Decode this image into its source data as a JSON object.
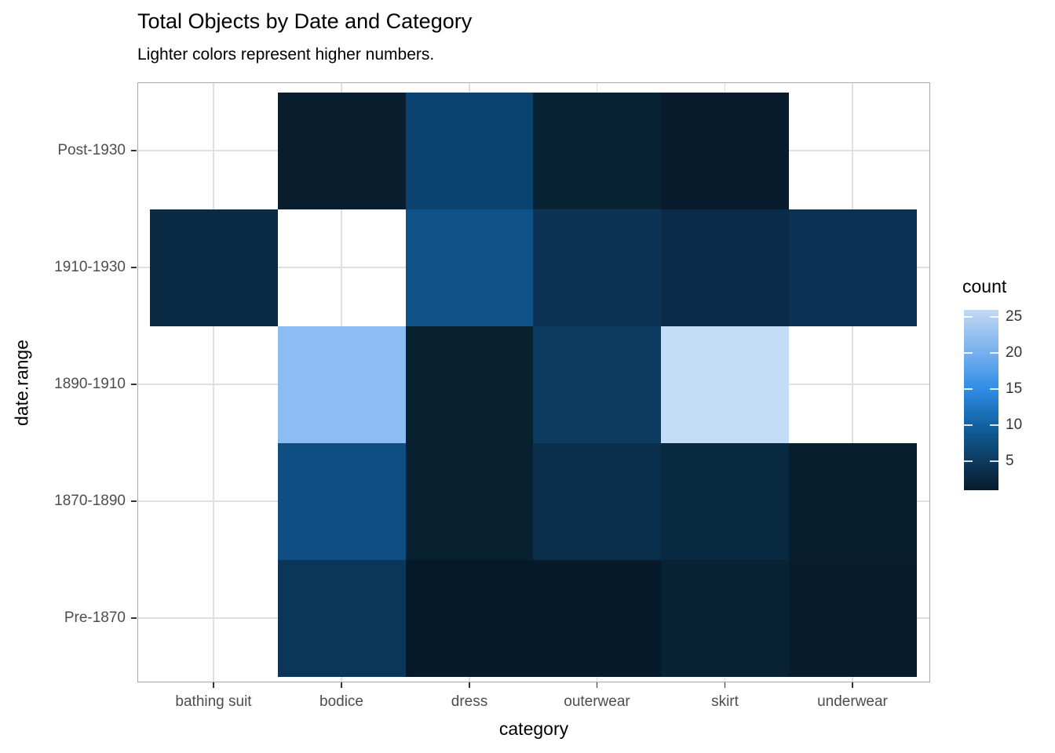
{
  "title": "Total Objects by Date and Category",
  "subtitle": "Lighter colors represent higher numbers.",
  "chart_data": {
    "type": "heatmap",
    "title": "Total Objects by Date and Category",
    "subtitle": "Lighter colors represent higher numbers.",
    "xlabel": "category",
    "ylabel": "date.range",
    "x_categories": [
      "bathing suit",
      "bodice",
      "dress",
      "outerwear",
      "skirt",
      "underwear"
    ],
    "y_categories": [
      "Post-1930",
      "1910-1930",
      "1890-1910",
      "1870-1890",
      "Pre-1870"
    ],
    "values": [
      [
        null,
        2,
        6,
        3,
        2,
        null
      ],
      [
        3,
        null,
        8,
        4,
        3,
        4
      ],
      [
        null,
        21,
        2,
        5,
        26,
        null
      ],
      [
        null,
        7,
        2,
        4,
        3,
        2
      ],
      [
        null,
        5,
        1,
        2,
        3,
        2
      ]
    ],
    "cell_colors": [
      [
        null,
        "#081d2e",
        "#0c4270",
        "#082334",
        "#081c2d",
        null
      ],
      [
        "#0a2a43",
        null,
        "#0e5288",
        "#0c3354",
        "#0a2c49",
        "#0b3154"
      ],
      [
        null,
        "#8dbcf2",
        "#07212f",
        "#0b3b60",
        "#c3ddf6",
        null
      ],
      [
        null,
        "#0f4e82",
        "#082130",
        "#0a2f4d",
        "#092940",
        "#071e2f"
      ],
      [
        null,
        "#0b3659",
        "#051928",
        "#071a2b",
        "#092336",
        "#081c2d"
      ]
    ],
    "missing_color": "#ffffff",
    "grid": true,
    "gridline_color": "#e0e0e0",
    "panel_border_color": "#a9a9a9",
    "legend": {
      "title": "count",
      "position": "right",
      "min": 1,
      "max": 26,
      "ticks": [
        5,
        10,
        15,
        20,
        25
      ],
      "gradient_stops": [
        {
          "value": 1,
          "color": "#091a2c"
        },
        {
          "value": 5,
          "color": "#0d3a5e"
        },
        {
          "value": 10,
          "color": "#1162a1"
        },
        {
          "value": 15,
          "color": "#2f8ce6"
        },
        {
          "value": 20,
          "color": "#76b0ee"
        },
        {
          "value": 25,
          "color": "#b5d1f1"
        },
        {
          "value": 26,
          "color": "#c4dbf4"
        }
      ]
    }
  }
}
